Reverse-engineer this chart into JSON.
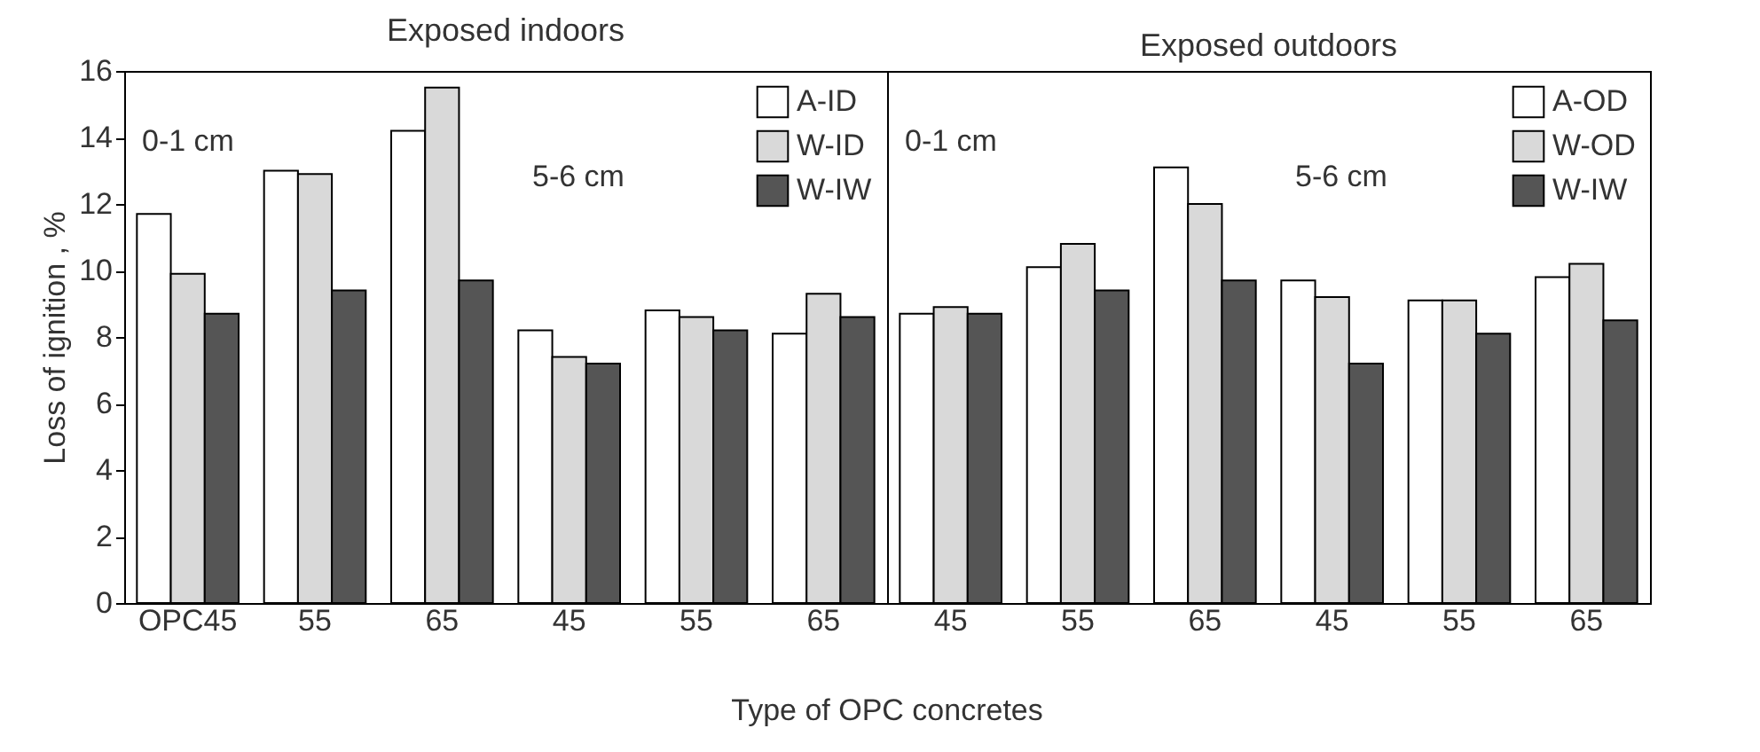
{
  "chart_data": [
    {
      "type": "bar",
      "title": "Exposed indoors",
      "ylabel": "Loss of ignition , %",
      "xlabel": "Type of OPC concretes",
      "categories": [
        "OPC45",
        "55",
        "65",
        "45",
        "55",
        "65"
      ],
      "series": [
        {
          "name": "A-ID",
          "color": "#ffffff",
          "values": [
            11.7,
            13.0,
            14.2,
            8.2,
            8.8,
            8.1
          ]
        },
        {
          "name": "W-ID",
          "color": "#d9d9d9",
          "values": [
            9.9,
            12.9,
            15.5,
            7.4,
            8.6,
            9.3
          ]
        },
        {
          "name": "W-IW",
          "color": "#555555",
          "values": [
            8.7,
            9.4,
            9.7,
            7.2,
            8.2,
            8.6
          ]
        }
      ],
      "annotations": [
        "0-1 cm",
        "5-6 cm"
      ],
      "ylim": [
        0,
        16
      ],
      "yticks": [
        0,
        2,
        4,
        6,
        8,
        10,
        12,
        14,
        16
      ],
      "legend": "top right"
    },
    {
      "type": "bar",
      "title": "Exposed outdoors",
      "categories": [
        "45",
        "55",
        "65",
        "45",
        "55",
        "65"
      ],
      "series": [
        {
          "name": "A-OD",
          "color": "#ffffff",
          "values": [
            8.7,
            10.1,
            13.1,
            9.7,
            9.1,
            9.8
          ]
        },
        {
          "name": "W-OD",
          "color": "#d9d9d9",
          "values": [
            8.9,
            10.8,
            12.0,
            9.2,
            9.1,
            10.2
          ]
        },
        {
          "name": "W-IW",
          "color": "#555555",
          "values": [
            8.7,
            9.4,
            9.7,
            7.2,
            8.1,
            8.5
          ]
        }
      ],
      "annotations": [
        "0-1 cm",
        "5-6 cm"
      ],
      "ylim": [
        0,
        16
      ],
      "yticks": [
        0,
        2,
        4,
        6,
        8,
        10,
        12,
        14,
        16
      ],
      "legend": "top right",
      "tick_labels": "x"
    }
  ]
}
